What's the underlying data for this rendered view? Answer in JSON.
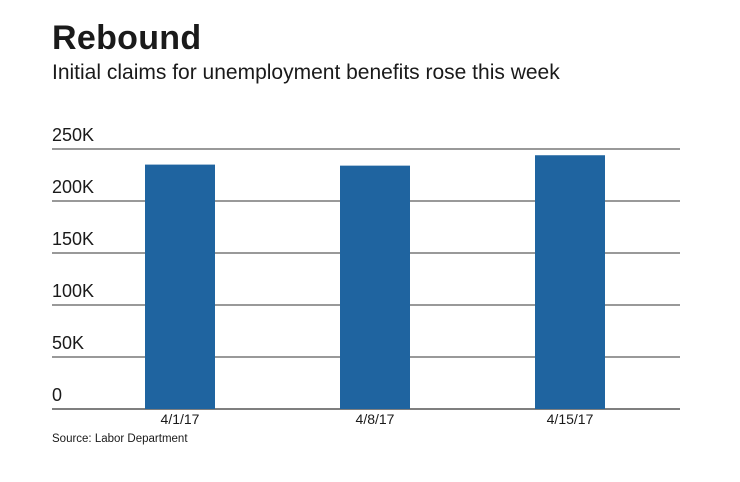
{
  "title": "Rebound",
  "subtitle": "Initial claims for unemployment benefits rose this week",
  "source": "Source: Labor Department",
  "colors": {
    "bar": "#1f64a0",
    "grid": "#333333",
    "text": "#1a1a1a"
  },
  "chart_data": {
    "type": "bar",
    "title": "Rebound",
    "subtitle": "Initial claims for unemployment benefits rose this week",
    "categories": [
      "4/1/17",
      "4/8/17",
      "4/15/17"
    ],
    "values": [
      235000,
      234000,
      244000
    ],
    "ylim": [
      0,
      250000
    ],
    "yticks": [
      0,
      50000,
      100000,
      150000,
      200000,
      250000
    ],
    "ytick_labels": [
      "0",
      "50K",
      "100K",
      "150K",
      "200K",
      "250K"
    ],
    "grid": true,
    "legend": "none"
  }
}
